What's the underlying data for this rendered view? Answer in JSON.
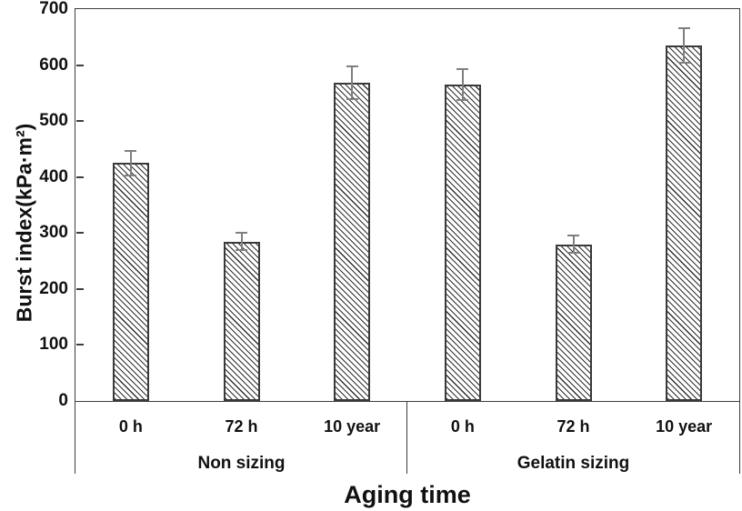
{
  "chart_data": {
    "type": "bar",
    "title": "",
    "ylabel": "Burst index(kPa·m²)",
    "xlabel": "Aging time",
    "ylim": [
      0,
      700
    ],
    "ytick_interval": 100,
    "yticks": [
      0,
      100,
      200,
      300,
      400,
      500,
      600,
      700
    ],
    "categories": [
      "0 h",
      "72 h",
      "10 year"
    ],
    "groups": [
      {
        "label": "Non sizing",
        "values": [
          425,
          285,
          568
        ],
        "errors": [
          22,
          16,
          29
        ]
      },
      {
        "label": "Gelatin sizing",
        "values": [
          565,
          280,
          635
        ],
        "errors": [
          28,
          16,
          31
        ]
      }
    ],
    "grid": false,
    "legend": null,
    "bar_fill": "white with black diagonal hatch (backslash direction)",
    "colors": {
      "axis": "#3d3d3d",
      "bar_border": "#3a3a3a",
      "hatch": "#2f2f2f",
      "error_bar": "#7f7f7f",
      "text": "#111111",
      "background": "#ffffff"
    }
  }
}
